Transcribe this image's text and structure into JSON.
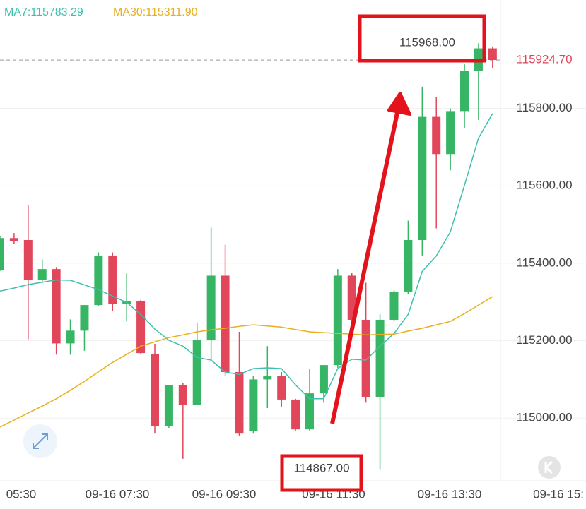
{
  "chart_data": {
    "type": "candlestick",
    "legend": [
      {
        "label": "MA7:115783.29",
        "color": "#3fbfae"
      },
      {
        "label": "MA30:115311.90",
        "color": "#e8b020"
      }
    ],
    "up_color": "#36b565",
    "down_color": "#e2465a",
    "open": [
      115383,
      115465,
      115460,
      115356,
      115385,
      115193,
      115226,
      115292,
      115420,
      115295,
      115302,
      115165,
      114979,
      115086,
      115035,
      115201,
      115368,
      115119,
      114967,
      115100,
      115108,
      115048,
      114971,
      115064,
      115137,
      115368,
      115254,
      115055,
      115254,
      115327,
      115460,
      115778,
      115682,
      115793,
      115897,
      115955
    ],
    "high": [
      115470,
      115478,
      115550,
      115410,
      115390,
      115255,
      115292,
      115428,
      115428,
      115374,
      115305,
      115192,
      115086,
      115090,
      115245,
      115492,
      115448,
      115223,
      115110,
      115186,
      115119,
      115050,
      115128,
      115137,
      115385,
      115375,
      115350,
      115268,
      115330,
      115510,
      115856,
      115830,
      115800,
      115915,
      115968,
      115960
    ],
    "low": [
      115380,
      115450,
      115204,
      115350,
      115164,
      115164,
      115174,
      115290,
      115277,
      115250,
      115165,
      114960,
      114975,
      114895,
      115035,
      115150,
      115110,
      114955,
      114960,
      115026,
      115030,
      114968,
      114968,
      115040,
      115130,
      115250,
      115040,
      114867,
      115250,
      115320,
      115420,
      115490,
      115640,
      115750,
      115770,
      115905
    ],
    "close": [
      115465,
      115458,
      115356,
      115385,
      115193,
      115226,
      115292,
      115420,
      115295,
      115302,
      115168,
      114979,
      115086,
      115035,
      115201,
      115368,
      115119,
      114960,
      115100,
      115108,
      115048,
      114971,
      115064,
      115137,
      115368,
      115254,
      115055,
      115254,
      115327,
      115460,
      115778,
      115682,
      115793,
      115897,
      115955,
      115925
    ],
    "ma7": [
      115328,
      115336,
      115345,
      115351,
      115357,
      115356,
      115344,
      115332,
      115315,
      115299,
      115268,
      115230,
      115201,
      115186,
      115157,
      115150,
      115119,
      115113,
      115128,
      115130,
      115128,
      115086,
      115050,
      115050,
      115128,
      115152,
      115150,
      115186,
      115219,
      115268,
      115379,
      115419,
      115481,
      115601,
      115723,
      115787
    ],
    "ma30": [
      114977,
      114995,
      115013,
      115031,
      115050,
      115072,
      115095,
      115120,
      115144,
      115165,
      115186,
      115197,
      115208,
      115215,
      115223,
      115228,
      115232,
      115237,
      115241,
      115238,
      115235,
      115229,
      115223,
      115221,
      115219,
      115217,
      115215,
      115216,
      115217,
      115225,
      115232,
      115241,
      115250,
      115270,
      115292,
      115314
    ],
    "xtick_labels": [
      "05:30",
      "09-16 07:30",
      "09-16 09:30",
      "09-16 11:30",
      "09-16 13:30",
      "09-16 15:"
    ],
    "ylim": [
      114840,
      116080
    ],
    "yticks": [
      {
        "value": 115000,
        "label": "115000.00"
      },
      {
        "value": 115200,
        "label": "115200.00"
      },
      {
        "value": 115400,
        "label": "115400.00"
      },
      {
        "value": 115600,
        "label": "115600.00"
      },
      {
        "value": 115800,
        "label": "115800.00"
      }
    ],
    "grid": true,
    "last_price": {
      "value": 115924.7,
      "label": "115924.70"
    },
    "high_label": {
      "value": 115968,
      "label": "115968.00"
    },
    "low_label": {
      "value": 114867,
      "label": "114867.00"
    }
  }
}
